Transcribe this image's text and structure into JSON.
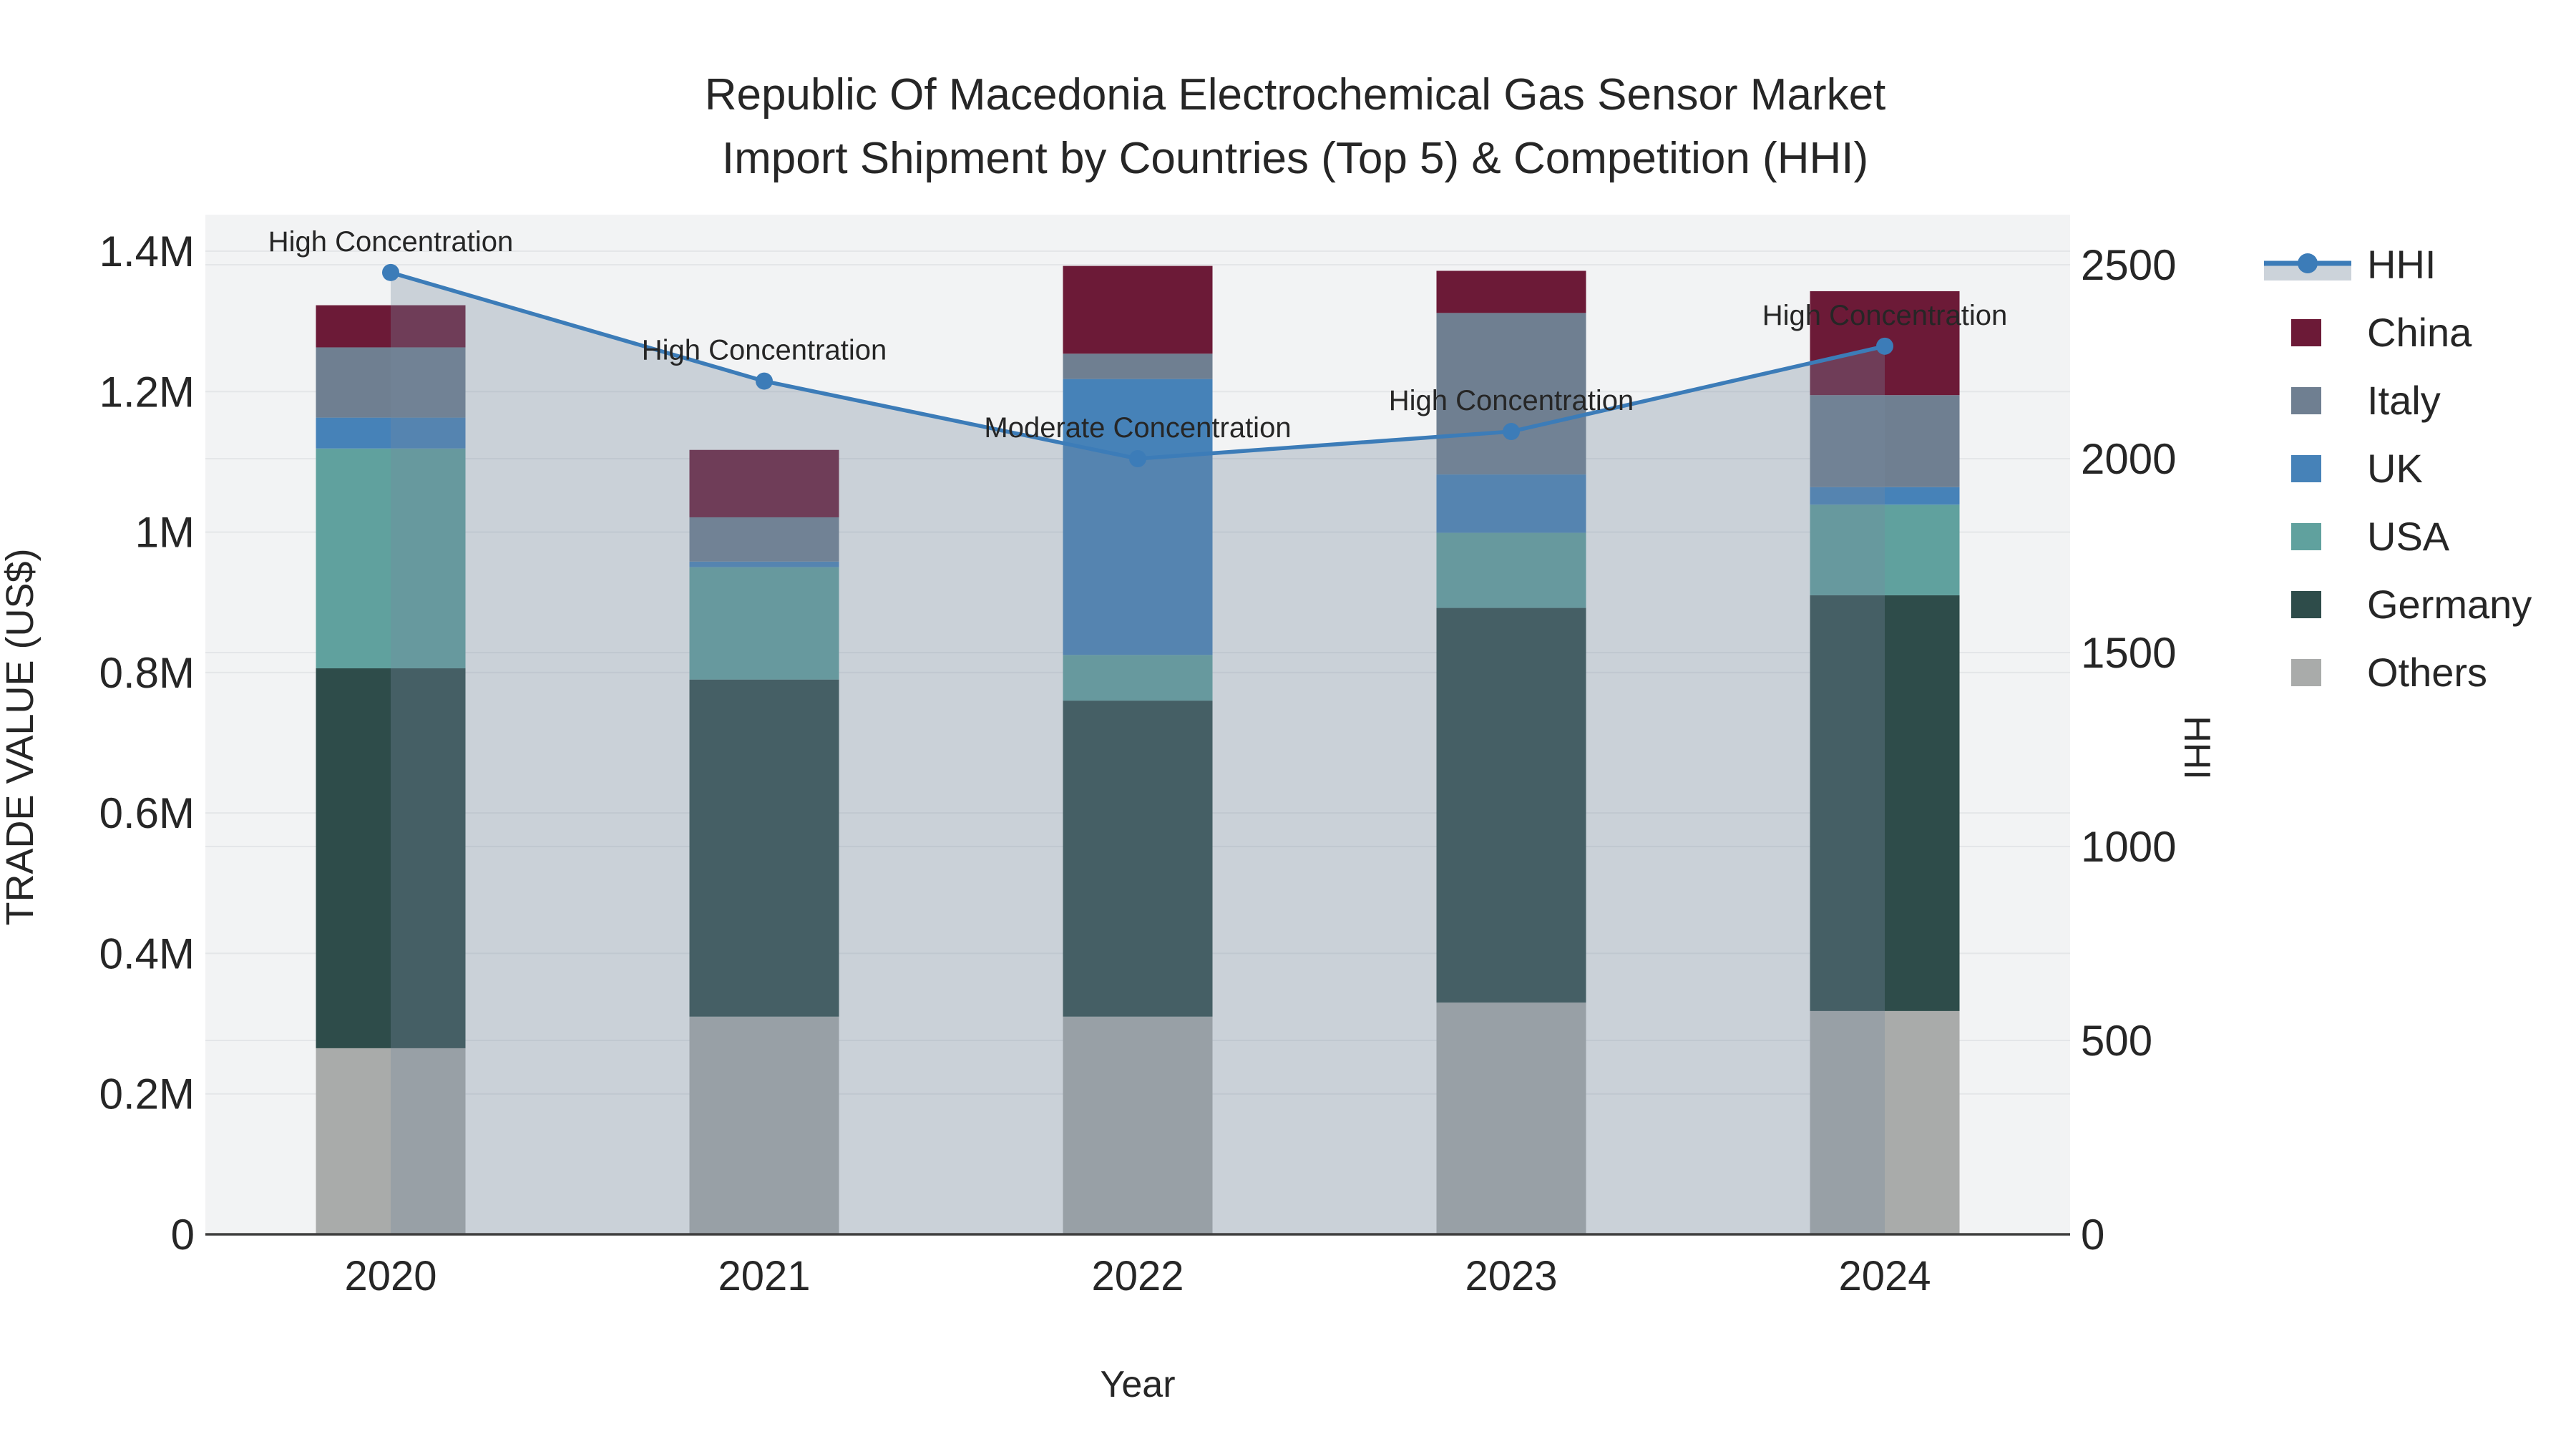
{
  "title": {
    "line1": "Republic Of Macedonia Electrochemical Gas Sensor Market",
    "line2": "Import Shipment by Countries (Top 5) & Competition (HHI)"
  },
  "chart_data": {
    "type": "bar+line",
    "categories": [
      "2020",
      "2021",
      "2022",
      "2023",
      "2024"
    ],
    "xlabel": "Year",
    "y_left": {
      "title": "TRADE VALUE (US$)",
      "range": [
        0,
        1452000
      ],
      "tick_values": [
        0,
        200000,
        400000,
        600000,
        800000,
        1000000,
        1200000,
        1400000
      ],
      "tick_labels": [
        "0",
        "0.2M",
        "0.4M",
        "0.6M",
        "0.8M",
        "1M",
        "1.2M",
        "1.4M"
      ]
    },
    "y_right": {
      "title": "HHI",
      "range": [
        0,
        2630
      ],
      "tick_values": [
        0,
        500,
        1000,
        1500,
        2000,
        2500
      ],
      "tick_labels": [
        "0",
        "500",
        "1000",
        "1500",
        "2000",
        "2500"
      ]
    },
    "series": [
      {
        "name": "Others",
        "color": "#a9abaa",
        "values": [
          265000,
          310000,
          310000,
          330000,
          318000
        ]
      },
      {
        "name": "Germany",
        "color": "#2e4c4a",
        "values": [
          541000,
          480000,
          450000,
          562000,
          592000
        ]
      },
      {
        "name": "USA",
        "color": "#60a19e",
        "values": [
          313000,
          160000,
          65000,
          107000,
          129000
        ]
      },
      {
        "name": "UK",
        "color": "#4682b8",
        "values": [
          44000,
          8000,
          393000,
          83000,
          25000
        ]
      },
      {
        "name": "Italy",
        "color": "#6f7f91",
        "values": [
          100000,
          63000,
          36000,
          230000,
          131000
        ]
      },
      {
        "name": "China",
        "color": "#6c1a37",
        "values": [
          60000,
          96000,
          125000,
          60000,
          148000
        ]
      }
    ],
    "line_series": {
      "name": "HHI",
      "color": "#3c7cb8",
      "fill_color": "rgba(119,138,159,0.32)",
      "values": [
        2480,
        2200,
        2000,
        2070,
        2290
      ]
    },
    "annotations": [
      {
        "category": "2020",
        "text": "High Concentration"
      },
      {
        "category": "2021",
        "text": "High Concentration"
      },
      {
        "category": "2022",
        "text": "Moderate Concentration"
      },
      {
        "category": "2023",
        "text": "High Concentration"
      },
      {
        "category": "2024",
        "text": "High Concentration"
      }
    ],
    "style": {
      "plot_bg": "#f2f3f4",
      "grid_color": "#e4e6e8",
      "axis_line_color": "#3f3f3f",
      "text_color": "#262626",
      "annotation_color": "#111111"
    }
  },
  "legend": {
    "items": [
      {
        "label": "HHI",
        "type": "line",
        "color": "#3c7cb8",
        "fill": "#ccd3da"
      },
      {
        "label": "China",
        "type": "square",
        "color": "#6c1a37"
      },
      {
        "label": "Italy",
        "type": "square",
        "color": "#6f7f91"
      },
      {
        "label": "UK",
        "type": "square",
        "color": "#4682b8"
      },
      {
        "label": "USA",
        "type": "square",
        "color": "#60a19e"
      },
      {
        "label": "Germany",
        "type": "square",
        "color": "#2e4c4a"
      },
      {
        "label": "Others",
        "type": "square",
        "color": "#a9abaa"
      }
    ]
  }
}
